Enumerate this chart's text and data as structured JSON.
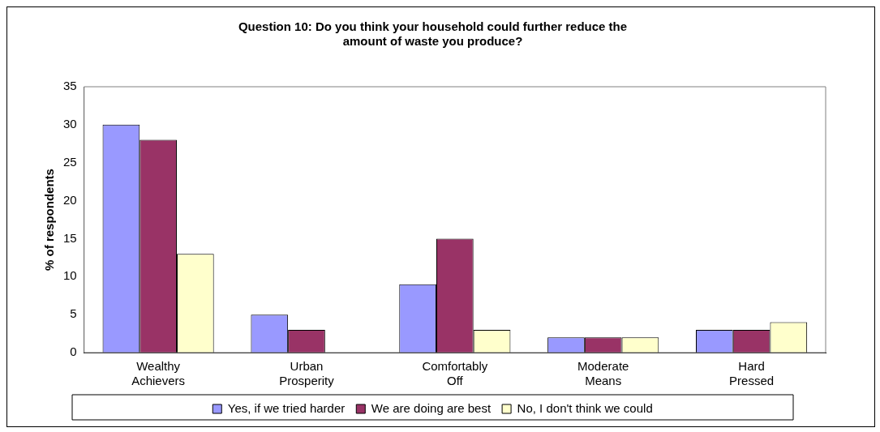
{
  "chart_data": {
    "type": "bar",
    "title": "Question 10: Do you think your household could further reduce the amount of waste you produce?",
    "ylabel": "% of respondents",
    "categories": [
      "Wealthy Achievers",
      "Urban Prosperity",
      "Comfortably Off",
      "Moderate Means",
      "Hard Pressed"
    ],
    "series": [
      {
        "name": "Yes, if we tried harder",
        "color": "#9999ff",
        "values": [
          30,
          5,
          9,
          2,
          3
        ]
      },
      {
        "name": "We are doing are best",
        "color": "#993366",
        "values": [
          28,
          3,
          15,
          2,
          3
        ]
      },
      {
        "name": "No, I don't think we could",
        "color": "#ffffcc",
        "values": [
          13,
          null,
          3,
          2,
          4
        ]
      }
    ],
    "ylim": [
      0,
      35
    ],
    "yticks": [
      0,
      5,
      10,
      15,
      20,
      25,
      30,
      35
    ],
    "grid": false,
    "legend": "bottom"
  }
}
